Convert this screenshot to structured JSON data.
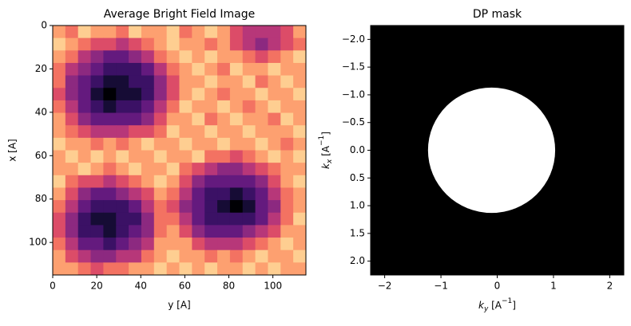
{
  "chart_data": [
    {
      "type": "heatmap",
      "title": "Average Bright Field Image",
      "xlabel": "y [A]",
      "ylabel": "x [A]",
      "xlim": [
        0,
        115
      ],
      "ylim": [
        115,
        0
      ],
      "xticks": [
        0,
        20,
        40,
        60,
        80,
        100
      ],
      "yticks": [
        0,
        20,
        40,
        60,
        80,
        100
      ],
      "colormap": "magma",
      "z": [
        [
          0.8,
          0.7,
          0.9,
          0.8,
          0.8,
          0.7,
          0.9,
          0.8,
          0.8,
          0.9,
          0.7,
          0.8,
          0.9,
          0.8,
          0.6,
          0.5,
          0.5,
          0.5,
          0.6,
          0.8
        ],
        [
          0.9,
          0.8,
          0.7,
          0.6,
          0.6,
          0.5,
          0.6,
          0.7,
          0.8,
          0.9,
          0.8,
          0.8,
          0.7,
          0.8,
          0.6,
          0.5,
          0.4,
          0.5,
          0.6,
          0.7
        ],
        [
          0.8,
          0.7,
          0.5,
          0.4,
          0.3,
          0.3,
          0.4,
          0.5,
          0.7,
          0.8,
          0.9,
          0.8,
          0.9,
          0.8,
          0.8,
          0.7,
          0.6,
          0.7,
          0.8,
          0.9
        ],
        [
          0.7,
          0.5,
          0.4,
          0.3,
          0.2,
          0.2,
          0.2,
          0.3,
          0.5,
          0.7,
          0.8,
          0.9,
          0.8,
          0.7,
          0.9,
          0.8,
          0.8,
          0.9,
          0.8,
          0.8
        ],
        [
          0.7,
          0.4,
          0.3,
          0.2,
          0.1,
          0.1,
          0.2,
          0.2,
          0.4,
          0.6,
          0.8,
          0.8,
          0.9,
          0.8,
          0.8,
          0.9,
          0.7,
          0.8,
          0.9,
          0.8
        ],
        [
          0.6,
          0.4,
          0.3,
          0.1,
          0.0,
          0.1,
          0.1,
          0.2,
          0.4,
          0.6,
          0.8,
          0.9,
          0.8,
          0.7,
          0.8,
          0.8,
          0.9,
          0.8,
          0.8,
          0.9
        ],
        [
          0.7,
          0.5,
          0.3,
          0.2,
          0.1,
          0.2,
          0.2,
          0.3,
          0.5,
          0.7,
          0.9,
          0.8,
          0.8,
          0.9,
          0.8,
          0.7,
          0.8,
          0.9,
          0.8,
          0.8
        ],
        [
          0.8,
          0.6,
          0.4,
          0.3,
          0.3,
          0.3,
          0.3,
          0.4,
          0.6,
          0.8,
          0.8,
          0.9,
          0.7,
          0.8,
          0.9,
          0.8,
          0.8,
          0.7,
          0.9,
          0.8
        ],
        [
          0.8,
          0.7,
          0.6,
          0.5,
          0.5,
          0.5,
          0.6,
          0.6,
          0.7,
          0.9,
          0.8,
          0.8,
          0.9,
          0.8,
          0.8,
          0.9,
          0.8,
          0.8,
          0.8,
          0.9
        ],
        [
          0.9,
          0.8,
          0.8,
          0.7,
          0.8,
          0.7,
          0.8,
          0.9,
          0.8,
          0.8,
          0.9,
          0.8,
          0.8,
          0.9,
          0.8,
          0.8,
          0.9,
          0.8,
          0.7,
          0.8
        ],
        [
          0.8,
          0.9,
          0.8,
          0.9,
          0.8,
          0.9,
          0.8,
          0.8,
          0.9,
          0.8,
          0.8,
          0.9,
          0.7,
          0.7,
          0.6,
          0.7,
          0.8,
          0.9,
          0.8,
          0.9
        ],
        [
          0.8,
          0.8,
          0.9,
          0.8,
          0.7,
          0.8,
          0.9,
          0.8,
          0.8,
          0.9,
          0.7,
          0.6,
          0.5,
          0.4,
          0.4,
          0.5,
          0.6,
          0.7,
          0.8,
          0.8
        ],
        [
          0.9,
          0.7,
          0.6,
          0.6,
          0.5,
          0.6,
          0.7,
          0.8,
          0.9,
          0.8,
          0.6,
          0.4,
          0.3,
          0.3,
          0.3,
          0.3,
          0.4,
          0.6,
          0.8,
          0.9
        ],
        [
          0.8,
          0.6,
          0.4,
          0.3,
          0.3,
          0.4,
          0.5,
          0.6,
          0.8,
          0.7,
          0.5,
          0.3,
          0.2,
          0.2,
          0.1,
          0.2,
          0.3,
          0.5,
          0.7,
          0.8
        ],
        [
          0.7,
          0.5,
          0.3,
          0.2,
          0.2,
          0.2,
          0.3,
          0.5,
          0.7,
          0.6,
          0.4,
          0.3,
          0.2,
          0.1,
          0.0,
          0.1,
          0.3,
          0.4,
          0.7,
          0.8
        ],
        [
          0.6,
          0.4,
          0.2,
          0.1,
          0.1,
          0.2,
          0.2,
          0.4,
          0.7,
          0.7,
          0.5,
          0.3,
          0.2,
          0.2,
          0.2,
          0.2,
          0.3,
          0.5,
          0.7,
          0.9
        ],
        [
          0.6,
          0.4,
          0.2,
          0.2,
          0.1,
          0.2,
          0.3,
          0.4,
          0.7,
          0.8,
          0.6,
          0.4,
          0.3,
          0.3,
          0.3,
          0.4,
          0.5,
          0.6,
          0.8,
          0.8
        ],
        [
          0.7,
          0.5,
          0.3,
          0.3,
          0.2,
          0.3,
          0.4,
          0.5,
          0.8,
          0.8,
          0.8,
          0.6,
          0.5,
          0.5,
          0.5,
          0.6,
          0.7,
          0.8,
          0.9,
          0.8
        ],
        [
          0.8,
          0.6,
          0.5,
          0.4,
          0.4,
          0.5,
          0.5,
          0.7,
          0.8,
          0.9,
          0.8,
          0.8,
          0.7,
          0.8,
          0.7,
          0.8,
          0.9,
          0.8,
          0.8,
          0.9
        ],
        [
          0.8,
          0.8,
          0.7,
          0.6,
          0.7,
          0.7,
          0.8,
          0.8,
          0.9,
          0.8,
          0.9,
          0.8,
          0.9,
          0.8,
          0.8,
          0.9,
          0.8,
          0.9,
          0.8,
          0.8
        ]
      ]
    },
    {
      "type": "mask",
      "title": "DP mask",
      "xlabel": {
        "symbol": "k",
        "subscript": "y",
        "unit": " [A",
        "exponent": "−1",
        "end": "]"
      },
      "ylabel": {
        "symbol": "k",
        "subscript": "x",
        "unit": " [A",
        "exponent": "−1",
        "end": "]"
      },
      "xlim": [
        -2.25,
        2.25
      ],
      "ylim": [
        2.25,
        -2.25
      ],
      "xticks": [
        {
          "value": -2,
          "label": "−2"
        },
        {
          "value": -1,
          "label": "−1"
        },
        0,
        1,
        2
      ],
      "yticks": [
        {
          "value": -2,
          "label": "−2.0"
        },
        {
          "value": -1.5,
          "label": "−1.5"
        },
        {
          "value": -1,
          "label": "−1.0"
        },
        {
          "value": -0.5,
          "label": "−0.5"
        },
        {
          "value": 0,
          "label": "0.0"
        },
        0.5,
        {
          "value": 1,
          "label": "1.0"
        },
        1.5,
        {
          "value": 2,
          "label": "2.0"
        }
      ],
      "background": "#000000",
      "fill": "#ffffff",
      "circle": {
        "center": [
          -0.1,
          0
        ],
        "radius": 1.13
      }
    }
  ]
}
